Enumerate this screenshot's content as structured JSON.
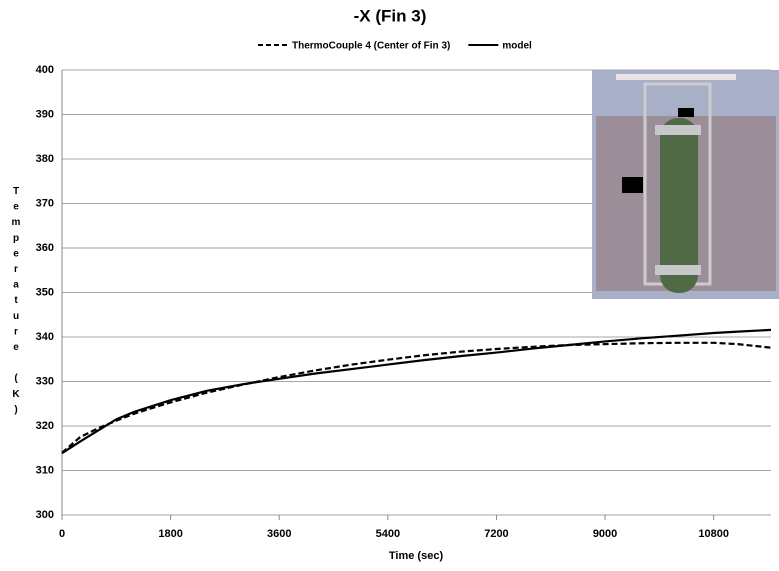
{
  "chart_data": {
    "type": "line",
    "title": "-X (Fin 3)",
    "x_label": "Time (sec)",
    "y_label": "Temperature (K)",
    "x": [
      0,
      300,
      600,
      900,
      1200,
      1800,
      2400,
      3000,
      3600,
      4200,
      4800,
      5400,
      6000,
      6600,
      7200,
      7800,
      8400,
      9000,
      9600,
      10200,
      10800,
      11200,
      11750
    ],
    "series": [
      {
        "name": "ThermoCouple 4 (Center of Fin 3)",
        "color": "#000000",
        "style": "dashed",
        "values": [
          314,
          317.5,
          319.5,
          321.2,
          322.8,
          325.3,
          327.5,
          329.3,
          331,
          332.5,
          333.8,
          334.9,
          335.9,
          336.7,
          337.3,
          337.8,
          338.2,
          338.4,
          338.6,
          338.7,
          338.7,
          338.4,
          337.6
        ]
      },
      {
        "name": "model",
        "color": "#000000",
        "style": "solid",
        "values": [
          313.9,
          316.5,
          319,
          321.5,
          323.2,
          325.8,
          327.9,
          329.4,
          330.6,
          331.8,
          332.8,
          333.8,
          334.8,
          335.7,
          336.5,
          337.4,
          338.2,
          339,
          339.7,
          340.3,
          340.9,
          341.2,
          341.6
        ]
      }
    ],
    "xlim": [
      0,
      11750
    ],
    "xticks": [
      0,
      1800,
      3600,
      5400,
      7200,
      9000,
      10800
    ],
    "ylim": [
      300,
      400
    ],
    "yticks": [
      300,
      310,
      320,
      330,
      340,
      350,
      360,
      370,
      380,
      390,
      400
    ],
    "grid": true,
    "legend": "top"
  }
}
